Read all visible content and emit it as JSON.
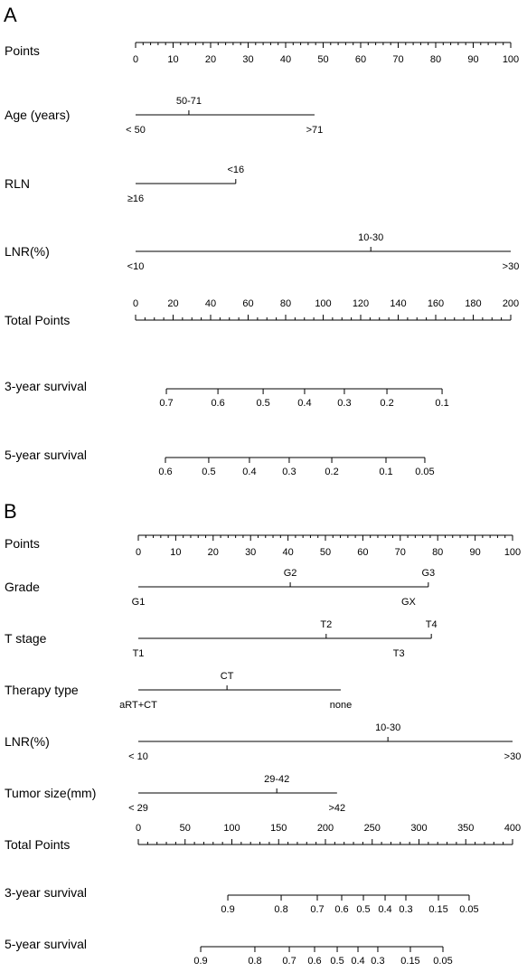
{
  "chart_data": [
    {
      "type": "nomogram",
      "panel": "A",
      "points_axis": {
        "label": "Points",
        "ticks": [
          0,
          10,
          20,
          30,
          40,
          50,
          60,
          70,
          80,
          90,
          100
        ],
        "minor_divisions": 5
      },
      "variables": [
        {
          "name": "Age (years)",
          "levels": [
            {
              "label": "< 50",
              "points": 0
            },
            {
              "label": "50-71",
              "points": 14.2
            },
            {
              "label": ">71",
              "points": 47.7
            }
          ]
        },
        {
          "name": "RLN",
          "levels": [
            {
              "label": "≥16",
              "points": 0
            },
            {
              "label": "<16",
              "points": 26.7
            }
          ]
        },
        {
          "name": "LNR(%)",
          "levels": [
            {
              "label": "<10",
              "points": 0
            },
            {
              "label": "10-30",
              "points": 62.7
            },
            {
              "label": ">30",
              "points": 100
            }
          ]
        }
      ],
      "total_points": {
        "label": "Total Points",
        "ticks": [
          0,
          20,
          40,
          60,
          80,
          100,
          120,
          140,
          160,
          180,
          200
        ],
        "minor_divisions": 4
      },
      "survival": [
        {
          "name": "3-year survival",
          "ticks": [
            {
              "value": 0.7,
              "points": 16.4
            },
            {
              "value": 0.6,
              "points": 43.9
            },
            {
              "value": 0.5,
              "points": 68
            },
            {
              "value": 0.4,
              "points": 90.1
            },
            {
              "value": 0.3,
              "points": 111.3
            },
            {
              "value": 0.2,
              "points": 134
            },
            {
              "value": 0.1,
              "points": 163.4
            }
          ]
        },
        {
          "name": "5-year survival",
          "ticks": [
            {
              "value": 0.6,
              "points": 15.9
            },
            {
              "value": 0.5,
              "points": 39
            },
            {
              "value": 0.4,
              "points": 60.7
            },
            {
              "value": 0.3,
              "points": 81.9
            },
            {
              "value": 0.2,
              "points": 104.6
            },
            {
              "value": 0.1,
              "points": 133.5
            },
            {
              "value": 0.05,
              "points": 154.2
            }
          ]
        }
      ]
    },
    {
      "type": "nomogram",
      "panel": "B",
      "points_axis": {
        "label": "Points",
        "ticks": [
          0,
          10,
          20,
          30,
          40,
          50,
          60,
          70,
          80,
          90,
          100
        ],
        "minor_divisions": 5
      },
      "variables": [
        {
          "name": "Grade",
          "levels": [
            {
              "label": "G1",
              "points": 0
            },
            {
              "label": "G2",
              "points": 40.6
            },
            {
              "label": "GX",
              "points": 72.2
            },
            {
              "label": "G3",
              "points": 77.5
            }
          ]
        },
        {
          "name": "T stage",
          "levels": [
            {
              "label": "T1",
              "points": 0
            },
            {
              "label": "T2",
              "points": 50.2
            },
            {
              "label": "T3",
              "points": 69.6
            },
            {
              "label": "T4",
              "points": 78.3
            }
          ]
        },
        {
          "name": "Therapy type",
          "levels": [
            {
              "label": "aRT+CT",
              "points": 0
            },
            {
              "label": "CT",
              "points": 23.7
            },
            {
              "label": "none",
              "points": 54.1
            }
          ]
        },
        {
          "name": "LNR(%)",
          "levels": [
            {
              "label": "< 10",
              "points": 0
            },
            {
              "label": "10-30",
              "points": 66.7
            },
            {
              "label": ">30",
              "points": 100
            }
          ]
        },
        {
          "name": "Tumor size(mm)",
          "levels": [
            {
              "label": "< 29",
              "points": 0
            },
            {
              "label": "29-42",
              "points": 37
            },
            {
              "label": ">42",
              "points": 53.1
            }
          ]
        }
      ],
      "total_points": {
        "label": "Total Points",
        "ticks": [
          0,
          50,
          100,
          150,
          200,
          250,
          300,
          350,
          400
        ],
        "minor_divisions": 5
      },
      "survival": [
        {
          "name": "3-year survival",
          "ticks": [
            {
              "value": 0.9,
              "points": 95.7
            },
            {
              "value": 0.8,
              "points": 152.7
            },
            {
              "value": 0.7,
              "points": 191.3
            },
            {
              "value": 0.6,
              "points": 217.4
            },
            {
              "value": 0.5,
              "points": 240.6
            },
            {
              "value": 0.4,
              "points": 263.8
            },
            {
              "value": 0.3,
              "points": 286
            },
            {
              "value": 0.15,
              "points": 320.8
            },
            {
              "value": 0.05,
              "points": 353.6
            }
          ]
        },
        {
          "name": "5-year survival",
          "ticks": [
            {
              "value": 0.9,
              "points": 66.7
            },
            {
              "value": 0.8,
              "points": 124.6
            },
            {
              "value": 0.7,
              "points": 161.4
            },
            {
              "value": 0.6,
              "points": 188.4
            },
            {
              "value": 0.5,
              "points": 212.6
            },
            {
              "value": 0.4,
              "points": 234.8
            },
            {
              "value": 0.3,
              "points": 256
            },
            {
              "value": 0.15,
              "points": 290.8
            },
            {
              "value": 0.05,
              "points": 325.6
            }
          ]
        }
      ]
    }
  ]
}
